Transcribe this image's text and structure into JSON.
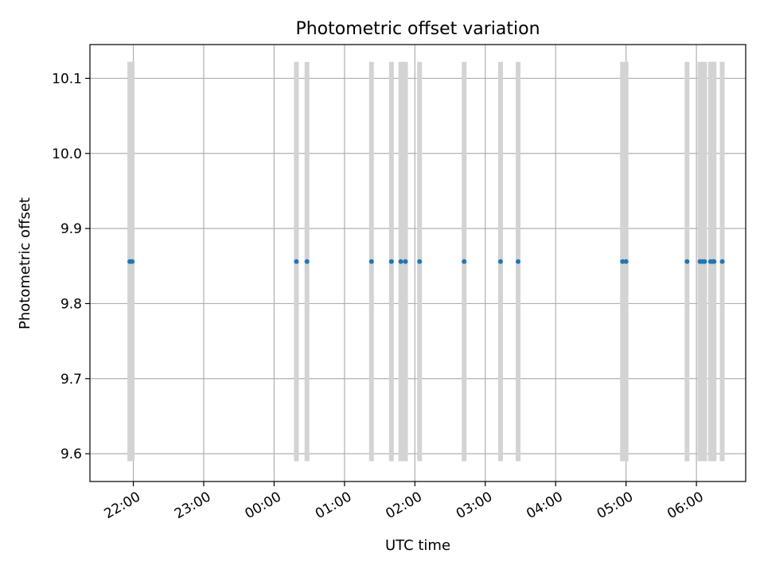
{
  "chart_data": {
    "type": "scatter",
    "title": "Photometric offset variation",
    "xlabel": "UTC time",
    "ylabel": "Photometric offset",
    "grid": true,
    "x_axis": {
      "type": "time",
      "ticks": [
        "22:00",
        "23:00",
        "00:00",
        "01:00",
        "02:00",
        "03:00",
        "04:00",
        "05:00",
        "06:00"
      ],
      "range": [
        "21:23",
        "06:42"
      ]
    },
    "y_axis": {
      "ticks": [
        "9.6",
        "9.7",
        "9.8",
        "9.9",
        "10.0",
        "10.1"
      ],
      "range": [
        9.563,
        10.145
      ]
    },
    "colors": {
      "points": "#1f77b4",
      "error_bars": "#d3d3d3",
      "grid": "#b0b0b0"
    },
    "series": [
      {
        "x": [
          "21:57",
          "21:59",
          "00:19",
          "00:28",
          "01:23",
          "01:40",
          "01:48",
          "01:52",
          "02:04",
          "02:42",
          "03:13",
          "03:28",
          "04:57",
          "05:00",
          "05:52",
          "06:03",
          "06:05",
          "06:07",
          "06:12",
          "06:14",
          "06:15",
          "06:22"
        ],
        "y": [
          9.856,
          9.856,
          9.856,
          9.856,
          9.856,
          9.856,
          9.856,
          9.856,
          9.856,
          9.856,
          9.856,
          9.856,
          9.856,
          9.856,
          9.856,
          9.856,
          9.856,
          9.856,
          9.856,
          9.856,
          9.856,
          9.856
        ],
        "y_low": 9.59,
        "y_high": 10.122
      }
    ]
  }
}
